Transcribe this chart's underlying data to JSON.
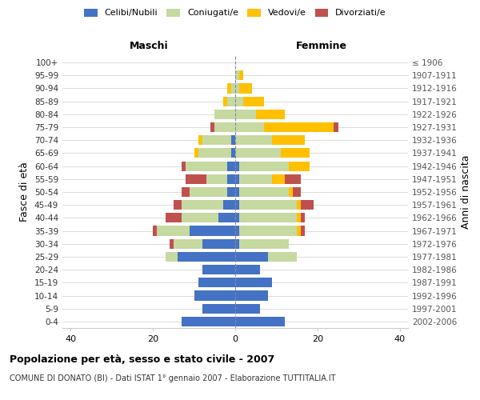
{
  "age_groups": [
    "100+",
    "95-99",
    "90-94",
    "85-89",
    "80-84",
    "75-79",
    "70-74",
    "65-69",
    "60-64",
    "55-59",
    "50-54",
    "45-49",
    "40-44",
    "35-39",
    "30-34",
    "25-29",
    "20-24",
    "15-19",
    "10-14",
    "5-9",
    "0-4"
  ],
  "birth_years": [
    "≤ 1906",
    "1907-1911",
    "1912-1916",
    "1917-1921",
    "1922-1926",
    "1927-1931",
    "1932-1936",
    "1937-1941",
    "1942-1946",
    "1947-1951",
    "1952-1956",
    "1957-1961",
    "1962-1966",
    "1967-1971",
    "1972-1976",
    "1977-1981",
    "1982-1986",
    "1987-1991",
    "1992-1996",
    "1997-2001",
    "2002-2006"
  ],
  "male": {
    "celibi": [
      0,
      0,
      0,
      0,
      0,
      0,
      1,
      1,
      2,
      2,
      2,
      3,
      4,
      11,
      8,
      14,
      8,
      9,
      10,
      8,
      13
    ],
    "coniugati": [
      0,
      0,
      1,
      2,
      5,
      5,
      7,
      8,
      10,
      5,
      9,
      10,
      9,
      8,
      7,
      3,
      0,
      0,
      0,
      0,
      0
    ],
    "vedovi": [
      0,
      0,
      1,
      1,
      0,
      0,
      1,
      1,
      0,
      0,
      0,
      0,
      0,
      0,
      0,
      0,
      0,
      0,
      0,
      0,
      0
    ],
    "divorziati": [
      0,
      0,
      0,
      0,
      0,
      1,
      0,
      0,
      1,
      5,
      2,
      2,
      4,
      1,
      1,
      0,
      0,
      0,
      0,
      0,
      0
    ]
  },
  "female": {
    "nubili": [
      0,
      0,
      0,
      0,
      0,
      0,
      0,
      0,
      1,
      1,
      1,
      1,
      1,
      1,
      1,
      8,
      6,
      9,
      8,
      6,
      12
    ],
    "coniugate": [
      0,
      1,
      1,
      2,
      5,
      7,
      9,
      11,
      12,
      8,
      12,
      14,
      14,
      14,
      12,
      7,
      0,
      0,
      0,
      0,
      0
    ],
    "vedove": [
      0,
      1,
      3,
      5,
      7,
      17,
      8,
      7,
      5,
      3,
      1,
      1,
      1,
      1,
      0,
      0,
      0,
      0,
      0,
      0,
      0
    ],
    "divorziate": [
      0,
      0,
      0,
      0,
      0,
      1,
      0,
      0,
      0,
      4,
      2,
      3,
      1,
      1,
      0,
      0,
      0,
      0,
      0,
      0,
      0
    ]
  },
  "colors": {
    "celibi": "#4472c4",
    "coniugati": "#c5d9a0",
    "vedovi": "#ffc000",
    "divorziati": "#c0504d"
  },
  "xlim": 42,
  "title": "Popolazione per età, sesso e stato civile - 2007",
  "subtitle": "COMUNE DI DONATO (BI) - Dati ISTAT 1° gennaio 2007 - Elaborazione TUTTITALIA.IT",
  "ylabel_left": "Fasce di età",
  "ylabel_right": "Anni di nascita",
  "xlabel_left": "Maschi",
  "xlabel_right": "Femmine",
  "legend_labels": [
    "Celibi/Nubili",
    "Coniugati/e",
    "Vedovi/e",
    "Divorziati/e"
  ],
  "background_color": "#ffffff",
  "grid_color": "#cccccc",
  "bar_height": 0.75
}
